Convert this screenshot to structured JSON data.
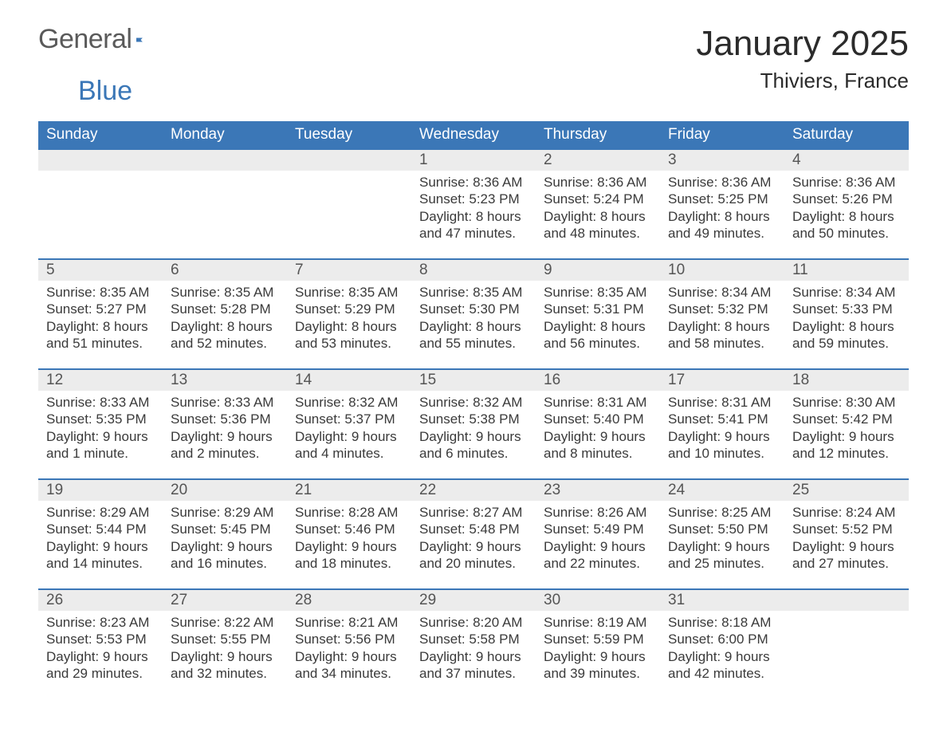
{
  "logo": {
    "text1": "General",
    "text2": "Blue"
  },
  "title": "January 2025",
  "location": "Thiviers, France",
  "colors": {
    "header_bg": "#3b77b7",
    "header_fg": "#ffffff",
    "daynum_bg": "#ececec",
    "row_border": "#3b77b7",
    "body_text": "#3a3a3a",
    "page_bg": "#ffffff"
  },
  "typography": {
    "title_fontsize_pt": 33,
    "location_fontsize_pt": 20,
    "header_fontsize_pt": 14,
    "daynum_fontsize_pt": 14,
    "body_fontsize_pt": 13
  },
  "weekdays": [
    "Sunday",
    "Monday",
    "Tuesday",
    "Wednesday",
    "Thursday",
    "Friday",
    "Saturday"
  ],
  "weeks": [
    [
      null,
      null,
      null,
      {
        "n": "1",
        "sunrise": "Sunrise: 8:36 AM",
        "sunset": "Sunset: 5:23 PM",
        "d1": "Daylight: 8 hours",
        "d2": "and 47 minutes."
      },
      {
        "n": "2",
        "sunrise": "Sunrise: 8:36 AM",
        "sunset": "Sunset: 5:24 PM",
        "d1": "Daylight: 8 hours",
        "d2": "and 48 minutes."
      },
      {
        "n": "3",
        "sunrise": "Sunrise: 8:36 AM",
        "sunset": "Sunset: 5:25 PM",
        "d1": "Daylight: 8 hours",
        "d2": "and 49 minutes."
      },
      {
        "n": "4",
        "sunrise": "Sunrise: 8:36 AM",
        "sunset": "Sunset: 5:26 PM",
        "d1": "Daylight: 8 hours",
        "d2": "and 50 minutes."
      }
    ],
    [
      {
        "n": "5",
        "sunrise": "Sunrise: 8:35 AM",
        "sunset": "Sunset: 5:27 PM",
        "d1": "Daylight: 8 hours",
        "d2": "and 51 minutes."
      },
      {
        "n": "6",
        "sunrise": "Sunrise: 8:35 AM",
        "sunset": "Sunset: 5:28 PM",
        "d1": "Daylight: 8 hours",
        "d2": "and 52 minutes."
      },
      {
        "n": "7",
        "sunrise": "Sunrise: 8:35 AM",
        "sunset": "Sunset: 5:29 PM",
        "d1": "Daylight: 8 hours",
        "d2": "and 53 minutes."
      },
      {
        "n": "8",
        "sunrise": "Sunrise: 8:35 AM",
        "sunset": "Sunset: 5:30 PM",
        "d1": "Daylight: 8 hours",
        "d2": "and 55 minutes."
      },
      {
        "n": "9",
        "sunrise": "Sunrise: 8:35 AM",
        "sunset": "Sunset: 5:31 PM",
        "d1": "Daylight: 8 hours",
        "d2": "and 56 minutes."
      },
      {
        "n": "10",
        "sunrise": "Sunrise: 8:34 AM",
        "sunset": "Sunset: 5:32 PM",
        "d1": "Daylight: 8 hours",
        "d2": "and 58 minutes."
      },
      {
        "n": "11",
        "sunrise": "Sunrise: 8:34 AM",
        "sunset": "Sunset: 5:33 PM",
        "d1": "Daylight: 8 hours",
        "d2": "and 59 minutes."
      }
    ],
    [
      {
        "n": "12",
        "sunrise": "Sunrise: 8:33 AM",
        "sunset": "Sunset: 5:35 PM",
        "d1": "Daylight: 9 hours",
        "d2": "and 1 minute."
      },
      {
        "n": "13",
        "sunrise": "Sunrise: 8:33 AM",
        "sunset": "Sunset: 5:36 PM",
        "d1": "Daylight: 9 hours",
        "d2": "and 2 minutes."
      },
      {
        "n": "14",
        "sunrise": "Sunrise: 8:32 AM",
        "sunset": "Sunset: 5:37 PM",
        "d1": "Daylight: 9 hours",
        "d2": "and 4 minutes."
      },
      {
        "n": "15",
        "sunrise": "Sunrise: 8:32 AM",
        "sunset": "Sunset: 5:38 PM",
        "d1": "Daylight: 9 hours",
        "d2": "and 6 minutes."
      },
      {
        "n": "16",
        "sunrise": "Sunrise: 8:31 AM",
        "sunset": "Sunset: 5:40 PM",
        "d1": "Daylight: 9 hours",
        "d2": "and 8 minutes."
      },
      {
        "n": "17",
        "sunrise": "Sunrise: 8:31 AM",
        "sunset": "Sunset: 5:41 PM",
        "d1": "Daylight: 9 hours",
        "d2": "and 10 minutes."
      },
      {
        "n": "18",
        "sunrise": "Sunrise: 8:30 AM",
        "sunset": "Sunset: 5:42 PM",
        "d1": "Daylight: 9 hours",
        "d2": "and 12 minutes."
      }
    ],
    [
      {
        "n": "19",
        "sunrise": "Sunrise: 8:29 AM",
        "sunset": "Sunset: 5:44 PM",
        "d1": "Daylight: 9 hours",
        "d2": "and 14 minutes."
      },
      {
        "n": "20",
        "sunrise": "Sunrise: 8:29 AM",
        "sunset": "Sunset: 5:45 PM",
        "d1": "Daylight: 9 hours",
        "d2": "and 16 minutes."
      },
      {
        "n": "21",
        "sunrise": "Sunrise: 8:28 AM",
        "sunset": "Sunset: 5:46 PM",
        "d1": "Daylight: 9 hours",
        "d2": "and 18 minutes."
      },
      {
        "n": "22",
        "sunrise": "Sunrise: 8:27 AM",
        "sunset": "Sunset: 5:48 PM",
        "d1": "Daylight: 9 hours",
        "d2": "and 20 minutes."
      },
      {
        "n": "23",
        "sunrise": "Sunrise: 8:26 AM",
        "sunset": "Sunset: 5:49 PM",
        "d1": "Daylight: 9 hours",
        "d2": "and 22 minutes."
      },
      {
        "n": "24",
        "sunrise": "Sunrise: 8:25 AM",
        "sunset": "Sunset: 5:50 PM",
        "d1": "Daylight: 9 hours",
        "d2": "and 25 minutes."
      },
      {
        "n": "25",
        "sunrise": "Sunrise: 8:24 AM",
        "sunset": "Sunset: 5:52 PM",
        "d1": "Daylight: 9 hours",
        "d2": "and 27 minutes."
      }
    ],
    [
      {
        "n": "26",
        "sunrise": "Sunrise: 8:23 AM",
        "sunset": "Sunset: 5:53 PM",
        "d1": "Daylight: 9 hours",
        "d2": "and 29 minutes."
      },
      {
        "n": "27",
        "sunrise": "Sunrise: 8:22 AM",
        "sunset": "Sunset: 5:55 PM",
        "d1": "Daylight: 9 hours",
        "d2": "and 32 minutes."
      },
      {
        "n": "28",
        "sunrise": "Sunrise: 8:21 AM",
        "sunset": "Sunset: 5:56 PM",
        "d1": "Daylight: 9 hours",
        "d2": "and 34 minutes."
      },
      {
        "n": "29",
        "sunrise": "Sunrise: 8:20 AM",
        "sunset": "Sunset: 5:58 PM",
        "d1": "Daylight: 9 hours",
        "d2": "and 37 minutes."
      },
      {
        "n": "30",
        "sunrise": "Sunrise: 8:19 AM",
        "sunset": "Sunset: 5:59 PM",
        "d1": "Daylight: 9 hours",
        "d2": "and 39 minutes."
      },
      {
        "n": "31",
        "sunrise": "Sunrise: 8:18 AM",
        "sunset": "Sunset: 6:00 PM",
        "d1": "Daylight: 9 hours",
        "d2": "and 42 minutes."
      },
      null
    ]
  ]
}
